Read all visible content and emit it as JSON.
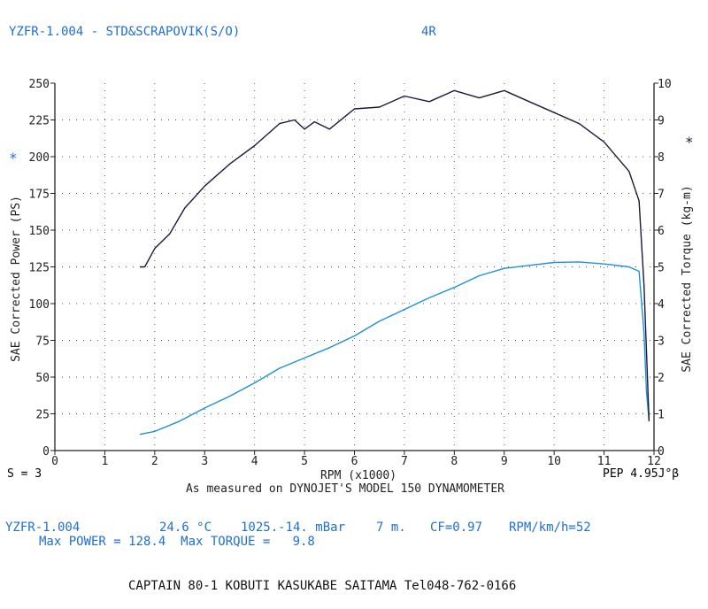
{
  "header": {
    "title": "YZFR-1.004 - STD&SCRAPOVIK(S/O)",
    "run_code": "4R"
  },
  "footer": {
    "smoothing": "S = 3",
    "pep": "PEP 4.95J°β",
    "info_model": "YZFR-1.004",
    "info_temp": "24.6 °C",
    "info_pressure": "1025.-14. mBar",
    "info_altitude": "7 m.",
    "info_cf": "CF=0.97",
    "info_rpm_ratio": "RPM/km/h=52",
    "max_line": "Max POWER = 128.4  Max TORQUE =   9.8",
    "shop": "CAPTAIN 80-1 KOBUTI KASUKABE SAITAMA Tel048-762-0166"
  },
  "colors": {
    "text_blue": "#1f6fd1",
    "power_line": "#1f8fd6",
    "torque_line": "#1a1a3a",
    "axis": "#222222"
  },
  "chart_data": {
    "type": "line",
    "xlabel": "RPM (x1000)",
    "subtitle": "As measured on DYNOJET'S MODEL 150 DYNAMOMETER",
    "ylabel_left": "SAE Corrected Power (PS)",
    "ylabel_right": "SAE Corrected Torque (kg-m)",
    "left_star": "*",
    "right_star": "*",
    "xlim": [
      0,
      12
    ],
    "ylim_left": [
      0,
      250
    ],
    "ylim_right": [
      0,
      10
    ],
    "x_ticks": [
      "0",
      "1",
      "2",
      "3",
      "4",
      "5",
      "6",
      "7",
      "8",
      "9",
      "10",
      "11",
      "12"
    ],
    "y_ticks_left": [
      "0",
      "25",
      "50",
      "75",
      "100",
      "125",
      "150",
      "175",
      "200",
      "225",
      "250"
    ],
    "y_ticks_right": [
      "0",
      "1",
      "2",
      "3",
      "4",
      "5",
      "6",
      "7",
      "8",
      "9",
      "10"
    ],
    "grid": true,
    "series": [
      {
        "axis": "left",
        "rpm": [
          1.7,
          2.0,
          2.5,
          3.0,
          3.5,
          4.0,
          4.5,
          5.0,
          5.5,
          6.0,
          6.5,
          7.0,
          7.5,
          8.0,
          8.5,
          9.0,
          9.5,
          10.0,
          10.5,
          11.0,
          11.5,
          11.7,
          11.8,
          11.85,
          11.9
        ],
        "values": [
          11,
          13,
          20,
          29,
          37,
          46,
          56,
          63,
          70,
          78,
          88,
          96,
          104,
          111,
          119,
          124,
          126,
          128,
          128.4,
          127,
          125,
          122,
          80,
          40,
          20
        ]
      },
      {
        "axis": "right",
        "rpm": [
          1.7,
          1.8,
          2.0,
          2.3,
          2.6,
          3.0,
          3.5,
          4.0,
          4.5,
          4.8,
          5.0,
          5.2,
          5.5,
          6.0,
          6.5,
          7.0,
          7.5,
          8.0,
          8.5,
          9.0,
          9.5,
          10.0,
          10.5,
          11.0,
          11.5,
          11.7,
          11.8,
          11.9
        ],
        "values": [
          5.0,
          5.0,
          5.5,
          5.9,
          6.6,
          7.2,
          7.8,
          8.3,
          8.9,
          9.0,
          8.75,
          8.95,
          8.75,
          9.3,
          9.35,
          9.65,
          9.5,
          9.8,
          9.6,
          9.8,
          9.5,
          9.2,
          8.9,
          8.4,
          7.6,
          6.8,
          4.5,
          0.8
        ]
      }
    ]
  }
}
